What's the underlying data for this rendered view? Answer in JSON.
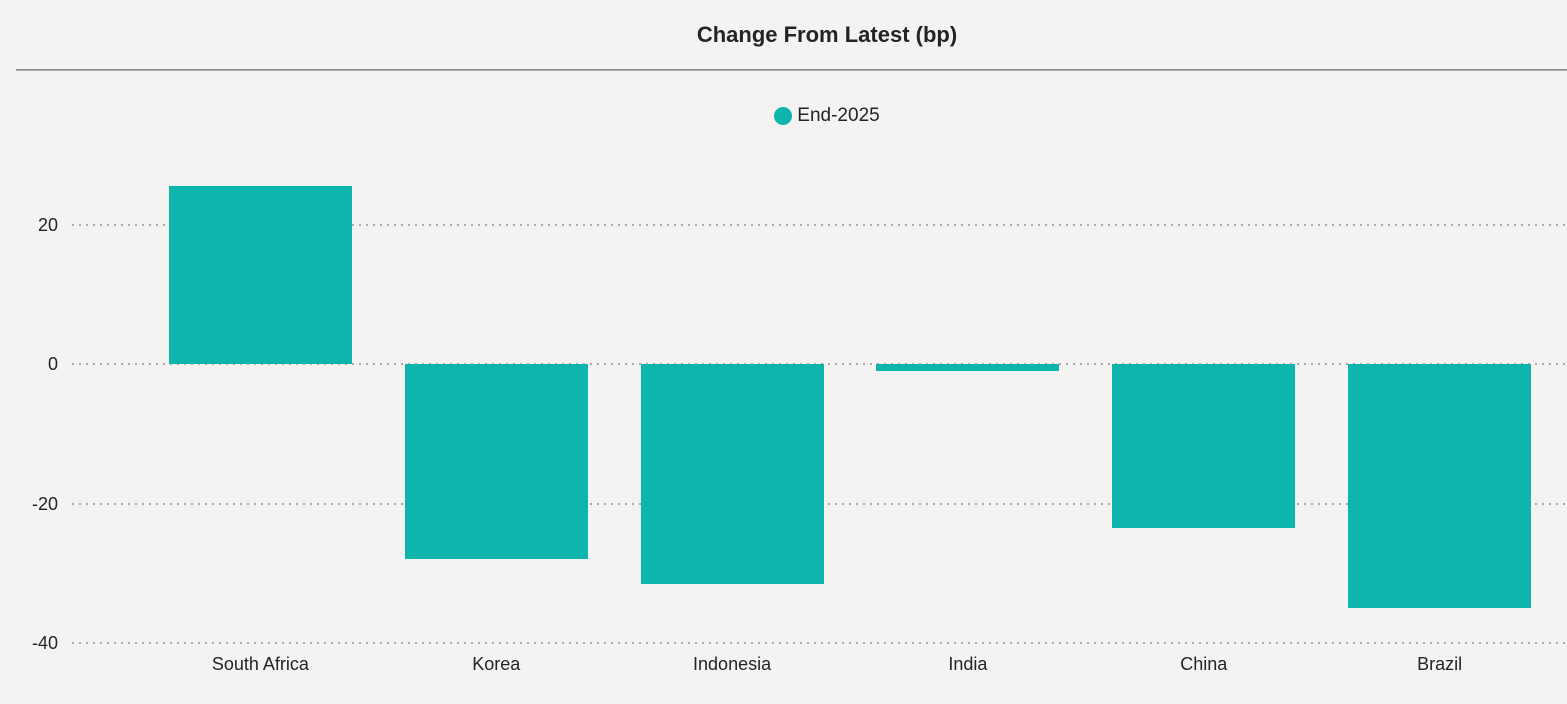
{
  "chart_data": {
    "type": "bar",
    "title": "Change From Latest (bp)",
    "categories": [
      "South Africa",
      "Korea",
      "Indonesia",
      "India",
      "China",
      "Brazil"
    ],
    "series": [
      {
        "name": "End-2025",
        "values": [
          25.5,
          -28,
          -31.5,
          -1,
          -23.5,
          -35
        ]
      }
    ],
    "legend": [
      {
        "name": "End-2025",
        "color": "#0EB5AC"
      }
    ],
    "legend_position": "top-center",
    "xlabel": "",
    "ylabel": "",
    "yticks": [
      20,
      0,
      -20,
      -40
    ],
    "ylim": [
      -42,
      32
    ],
    "grid": "horizontal-dotted"
  },
  "colors": {
    "bar": "#0EB5AC",
    "background": "#F4F3F2",
    "title_text": "#252423",
    "axis_text": "#252423",
    "gridline": "#A9A9A9",
    "divider": "#8A8A8A"
  }
}
